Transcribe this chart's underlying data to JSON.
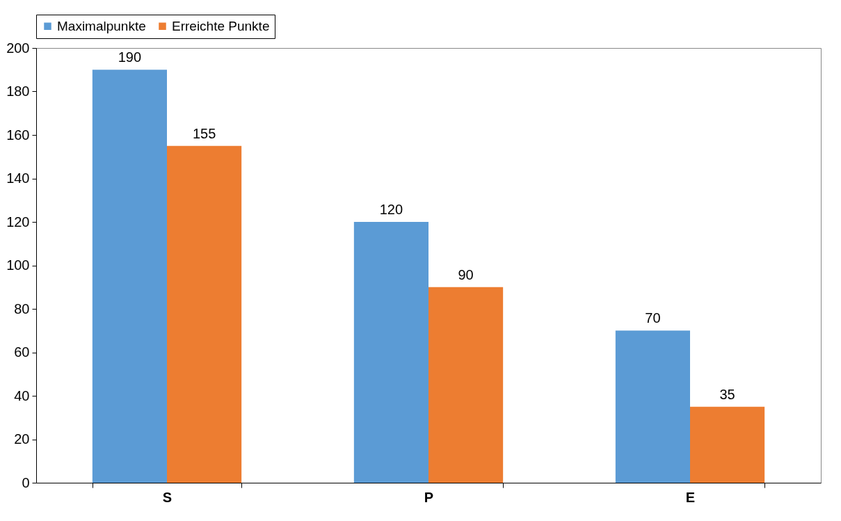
{
  "chart_data": {
    "type": "bar",
    "categories": [
      "S",
      "P",
      "E"
    ],
    "series": [
      {
        "name": "Maximalpunkte",
        "color": "#5b9bd5",
        "values": [
          190,
          120,
          70
        ]
      },
      {
        "name": "Erreichte Punkte",
        "color": "#ed7d31",
        "values": [
          155,
          90,
          35
        ]
      }
    ],
    "ylim": [
      0,
      200
    ],
    "yticks": [
      0,
      20,
      40,
      60,
      80,
      100,
      120,
      140,
      160,
      180,
      200
    ],
    "grid": false,
    "legend": "top",
    "data_labels": true
  }
}
